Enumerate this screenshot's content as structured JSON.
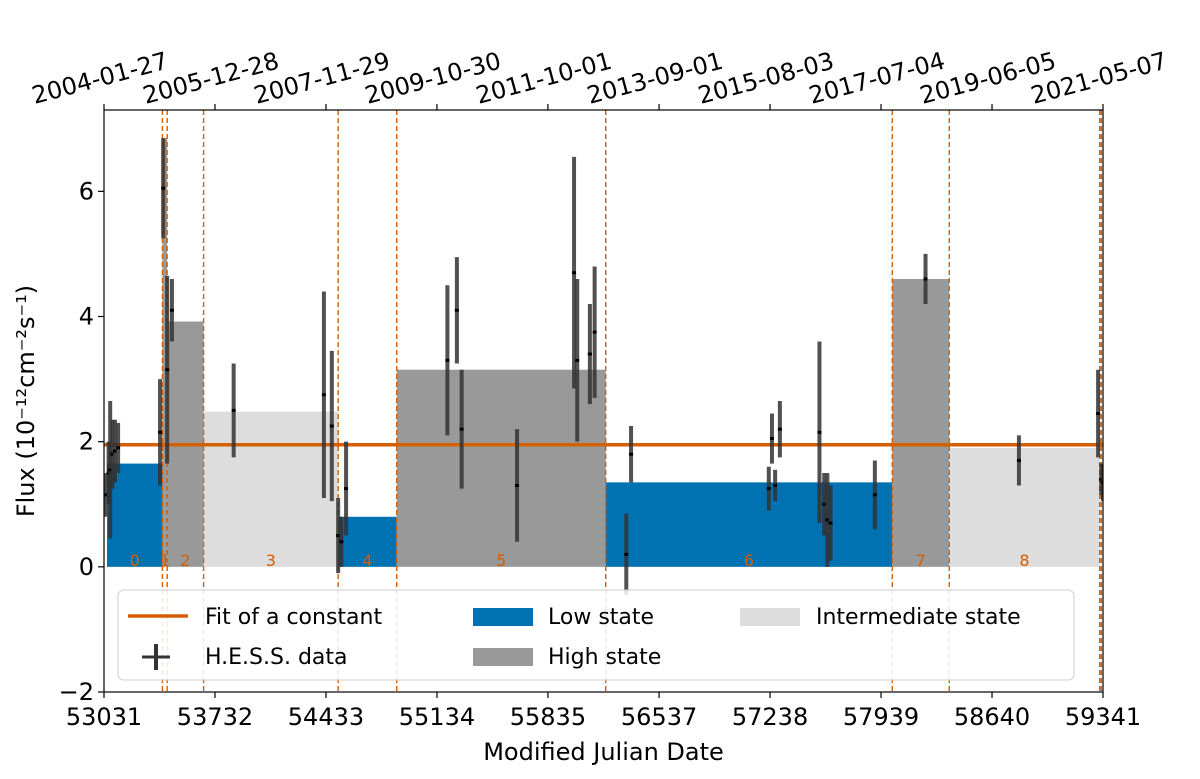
{
  "chart_data": {
    "type": "bar",
    "xlabel": "Modified Julian Date",
    "ylabel": "Flux (10⁻¹²cm⁻²s⁻¹)",
    "xlim": [
      53031,
      59341
    ],
    "ylim": [
      -2,
      7.3
    ],
    "x_ticks": [
      53031,
      53732,
      54433,
      55134,
      55835,
      56537,
      57238,
      57939,
      58640,
      59341
    ],
    "y_ticks": [
      -2,
      0,
      2,
      4,
      6
    ],
    "y_tick_labels": [
      "−2",
      "0",
      "2",
      "4",
      "6"
    ],
    "top_axis_ticks": [
      {
        "mjd": 53031,
        "label": "2004-01-27"
      },
      {
        "mjd": 53732,
        "label": "2005-12-28"
      },
      {
        "mjd": 54433,
        "label": "2007-11-29"
      },
      {
        "mjd": 55134,
        "label": "2009-10-30"
      },
      {
        "mjd": 55835,
        "label": "2011-10-01"
      },
      {
        "mjd": 56537,
        "label": "2013-09-01"
      },
      {
        "mjd": 57238,
        "label": "2015-08-03"
      },
      {
        "mjd": 57939,
        "label": "2017-07-04"
      },
      {
        "mjd": 58640,
        "label": "2019-06-05"
      },
      {
        "mjd": 59341,
        "label": "2021-05-07"
      }
    ],
    "constant_fit": 1.95,
    "segments": [
      {
        "label": "0",
        "start": 53050,
        "end": 53400,
        "flux": 1.65,
        "state": "low"
      },
      {
        "label": "1",
        "start": 53400,
        "end": 53430,
        "flux": 6.85,
        "state": "high"
      },
      {
        "label": "2",
        "start": 53430,
        "end": 53660,
        "flux": 3.92,
        "state": "high"
      },
      {
        "label": "3",
        "start": 53660,
        "end": 54510,
        "flux": 2.48,
        "state": "intermediate"
      },
      {
        "label": "4",
        "start": 54510,
        "end": 54880,
        "flux": 0.8,
        "state": "low"
      },
      {
        "label": "5",
        "start": 54880,
        "end": 56200,
        "flux": 3.15,
        "state": "high"
      },
      {
        "label": "6",
        "start": 56200,
        "end": 58010,
        "flux": 1.35,
        "state": "low"
      },
      {
        "label": "7",
        "start": 58010,
        "end": 58370,
        "flux": 4.6,
        "state": "high"
      },
      {
        "label": "8",
        "start": 58370,
        "end": 59320,
        "flux": 1.9,
        "state": "intermediate"
      }
    ],
    "change_points": [
      53400,
      53430,
      53660,
      54510,
      54880,
      56200,
      58010,
      58370,
      59320,
      59330
    ],
    "hess_data": [
      {
        "x": 53040,
        "y": 1.15,
        "err": 0.35
      },
      {
        "x": 53060,
        "y": 1.5,
        "err": 0.5
      },
      {
        "x": 53070,
        "y": 1.55,
        "err": 1.1
      },
      {
        "x": 53085,
        "y": 1.8,
        "err": 0.55
      },
      {
        "x": 53100,
        "y": 1.85,
        "err": 0.5
      },
      {
        "x": 53120,
        "y": 1.9,
        "err": 0.4
      },
      {
        "x": 53385,
        "y": 2.15,
        "err": 0.85
      },
      {
        "x": 53405,
        "y": 6.05,
        "err": 0.8
      },
      {
        "x": 53430,
        "y": 3.15,
        "err": 1.5
      },
      {
        "x": 53460,
        "y": 4.1,
        "err": 0.5
      },
      {
        "x": 53850,
        "y": 2.5,
        "err": 0.75
      },
      {
        "x": 54420,
        "y": 2.75,
        "err": 1.65
      },
      {
        "x": 54470,
        "y": 2.25,
        "err": 1.2
      },
      {
        "x": 54510,
        "y": 0.5,
        "err": 0.6
      },
      {
        "x": 54530,
        "y": 0.4,
        "err": 0.4
      },
      {
        "x": 54560,
        "y": 1.25,
        "err": 0.75
      },
      {
        "x": 55200,
        "y": 3.3,
        "err": 1.2
      },
      {
        "x": 55260,
        "y": 4.1,
        "err": 0.85
      },
      {
        "x": 55290,
        "y": 2.2,
        "err": 0.95
      },
      {
        "x": 55640,
        "y": 1.3,
        "err": 0.9
      },
      {
        "x": 56000,
        "y": 4.7,
        "err": 1.85
      },
      {
        "x": 56020,
        "y": 3.3,
        "err": 1.3
      },
      {
        "x": 56100,
        "y": 3.4,
        "err": 0.8
      },
      {
        "x": 56130,
        "y": 3.75,
        "err": 1.05
      },
      {
        "x": 56330,
        "y": 0.2,
        "err": 0.65
      },
      {
        "x": 56360,
        "y": 1.8,
        "err": 0.45
      },
      {
        "x": 57230,
        "y": 1.25,
        "err": 0.35
      },
      {
        "x": 57250,
        "y": 2.05,
        "err": 0.4
      },
      {
        "x": 57270,
        "y": 1.3,
        "err": 0.25
      },
      {
        "x": 57300,
        "y": 2.2,
        "err": 0.45
      },
      {
        "x": 57550,
        "y": 2.15,
        "err": 1.45
      },
      {
        "x": 57580,
        "y": 1.0,
        "err": 0.5
      },
      {
        "x": 57600,
        "y": 0.75,
        "err": 0.75
      },
      {
        "x": 57620,
        "y": 0.7,
        "err": 0.6
      },
      {
        "x": 57900,
        "y": 1.15,
        "err": 0.55
      },
      {
        "x": 58220,
        "y": 4.6,
        "err": 0.4
      },
      {
        "x": 58810,
        "y": 1.7,
        "err": 0.4
      },
      {
        "x": 59310,
        "y": 2.45,
        "err": 0.7
      },
      {
        "x": 59330,
        "y": 1.4,
        "err": 0.25
      },
      {
        "x": 59340,
        "y": 1.35,
        "err": 0.3
      }
    ],
    "legend": {
      "placement": "lower-center",
      "entries": [
        {
          "label": "Fit of a constant",
          "kind": "line"
        },
        {
          "label": "Low state",
          "kind": "patch-low"
        },
        {
          "label": "Intermediate state",
          "kind": "patch-intermediate"
        },
        {
          "label": "H.E.S.S. data",
          "kind": "errorbar"
        },
        {
          "label": "High state",
          "kind": "patch-high"
        }
      ]
    },
    "colors": {
      "low": "#0072b2",
      "high": "#999999",
      "intermediate": "#dddddd",
      "fit": "#d55e00",
      "changepoint": "#d55e00",
      "data": "#333333"
    },
    "grid": false
  }
}
